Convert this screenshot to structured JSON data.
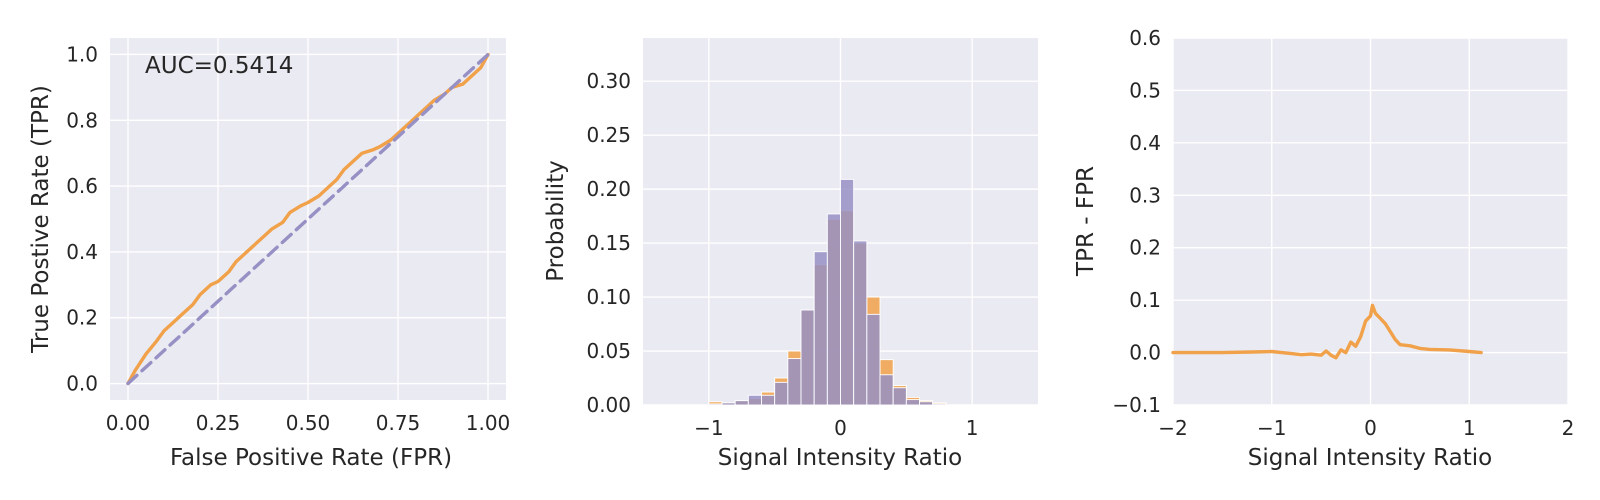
{
  "colors": {
    "orange": "#f0a149",
    "purple": "#9690c4",
    "plot_bg": "#eaeaf2",
    "grid": "#ffffff"
  },
  "chart_data": [
    {
      "type": "line",
      "xlabel": "False Positive Rate (FPR)",
      "ylabel": "True Postive Rate (TPR)",
      "annotation": "AUC=0.5414",
      "xlim": [
        -0.05,
        1.05
      ],
      "ylim": [
        -0.05,
        1.05
      ],
      "xticks": [
        0.0,
        0.25,
        0.5,
        0.75,
        1.0
      ],
      "xtick_labels": [
        "0.00",
        "0.25",
        "0.50",
        "0.75",
        "1.00"
      ],
      "yticks": [
        0.0,
        0.2,
        0.4,
        0.6,
        0.8,
        1.0
      ],
      "ytick_labels": [
        "0.0",
        "0.2",
        "0.4",
        "0.6",
        "0.8",
        "1.0"
      ],
      "grid": true,
      "series": [
        {
          "style": "solid",
          "color": "orange",
          "x": [
            0.0,
            0.02,
            0.05,
            0.08,
            0.1,
            0.13,
            0.15,
            0.18,
            0.2,
            0.23,
            0.25,
            0.28,
            0.3,
            0.33,
            0.36,
            0.38,
            0.4,
            0.43,
            0.45,
            0.48,
            0.5,
            0.53,
            0.55,
            0.58,
            0.6,
            0.63,
            0.65,
            0.68,
            0.7,
            0.73,
            0.76,
            0.78,
            0.8,
            0.83,
            0.85,
            0.88,
            0.9,
            0.93,
            0.95,
            0.98,
            1.0
          ],
          "y": [
            0.0,
            0.04,
            0.09,
            0.13,
            0.16,
            0.19,
            0.21,
            0.24,
            0.27,
            0.3,
            0.31,
            0.34,
            0.37,
            0.4,
            0.43,
            0.45,
            0.47,
            0.49,
            0.52,
            0.54,
            0.55,
            0.57,
            0.59,
            0.62,
            0.65,
            0.68,
            0.7,
            0.71,
            0.72,
            0.74,
            0.77,
            0.79,
            0.81,
            0.84,
            0.86,
            0.88,
            0.9,
            0.91,
            0.93,
            0.96,
            1.0
          ]
        },
        {
          "style": "dashed",
          "color": "purple",
          "x": [
            0.0,
            1.0
          ],
          "y": [
            0.0,
            1.0
          ]
        }
      ]
    },
    {
      "type": "bar",
      "xlabel": "Signal Intensity Ratio",
      "ylabel": "Probability",
      "xlim": [
        -1.5,
        1.5
      ],
      "ylim": [
        0.0,
        0.34
      ],
      "xticks": [
        -1,
        0,
        1
      ],
      "xtick_labels": [
        "−1",
        "0",
        "1"
      ],
      "yticks": [
        0.0,
        0.05,
        0.1,
        0.15,
        0.2,
        0.25,
        0.3
      ],
      "ytick_labels": [
        "0.00",
        "0.05",
        "0.10",
        "0.15",
        "0.20",
        "0.25",
        "0.30"
      ],
      "grid": true,
      "bin_width": 0.1,
      "series": [
        {
          "color": "orange",
          "opacity": 0.85,
          "bin_left": [
            -1.0,
            -0.9,
            -0.8,
            -0.7,
            -0.6,
            -0.5,
            -0.4,
            -0.3,
            -0.2,
            -0.1,
            0.0,
            0.1,
            0.2,
            0.3,
            0.4,
            0.5,
            0.6,
            0.7
          ],
          "values": [
            0.003,
            0.002,
            0.004,
            0.006,
            0.012,
            0.025,
            0.05,
            0.088,
            0.13,
            0.172,
            0.18,
            0.15,
            0.1,
            0.042,
            0.018,
            0.007,
            0.004,
            0.002
          ]
        },
        {
          "color": "purple",
          "opacity": 0.85,
          "bin_left": [
            -1.0,
            -0.9,
            -0.8,
            -0.7,
            -0.6,
            -0.5,
            -0.4,
            -0.3,
            -0.2,
            -0.1,
            0.0,
            0.1,
            0.2,
            0.3,
            0.4,
            0.5,
            0.6,
            0.7
          ],
          "values": [
            0.001,
            0.002,
            0.004,
            0.009,
            0.009,
            0.021,
            0.043,
            0.088,
            0.142,
            0.177,
            0.209,
            0.152,
            0.084,
            0.028,
            0.016,
            0.005,
            0.003,
            0.001
          ]
        }
      ]
    },
    {
      "type": "line",
      "xlabel": "Signal Intensity Ratio",
      "ylabel": "TPR - FPR",
      "xlim": [
        -2,
        2
      ],
      "ylim": [
        -0.1,
        0.6
      ],
      "xticks": [
        -2,
        -1,
        0,
        1,
        2
      ],
      "xtick_labels": [
        "−2",
        "−1",
        "0",
        "1",
        "2"
      ],
      "yticks": [
        -0.1,
        0.0,
        0.1,
        0.2,
        0.3,
        0.4,
        0.5,
        0.6
      ],
      "ytick_labels": [
        "−0.1",
        "0.0",
        "0.1",
        "0.2",
        "0.3",
        "0.4",
        "0.5",
        "0.6"
      ],
      "grid": true,
      "series": [
        {
          "style": "solid",
          "color": "orange",
          "x": [
            -2.0,
            -1.5,
            -1.2,
            -1.0,
            -0.9,
            -0.8,
            -0.7,
            -0.6,
            -0.5,
            -0.45,
            -0.4,
            -0.35,
            -0.3,
            -0.25,
            -0.2,
            -0.15,
            -0.1,
            -0.05,
            0.0,
            0.02,
            0.05,
            0.1,
            0.15,
            0.2,
            0.25,
            0.3,
            0.4,
            0.5,
            0.6,
            0.8,
            1.0,
            1.12
          ],
          "y": [
            0.0,
            0.0,
            0.001,
            0.002,
            0.0,
            -0.002,
            -0.004,
            -0.003,
            -0.005,
            0.003,
            -0.005,
            -0.01,
            0.005,
            0.0,
            0.02,
            0.012,
            0.03,
            0.06,
            0.07,
            0.09,
            0.075,
            0.065,
            0.055,
            0.04,
            0.025,
            0.015,
            0.013,
            0.008,
            0.006,
            0.005,
            0.002,
            0.0
          ]
        }
      ]
    }
  ]
}
